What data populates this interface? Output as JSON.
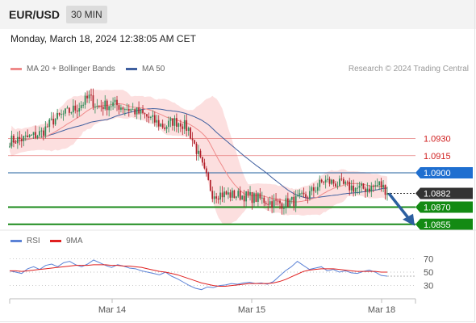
{
  "header": {
    "symbol": "EUR/USD",
    "timeframe": "30 MIN",
    "timestamp": "Monday, March 18, 2024 12:38:05 AM CET"
  },
  "legend": {
    "ma20": "MA 20 + Bollinger Bands",
    "ma50": "MA 50",
    "credit": "Research © 2024 Trading Central",
    "rsi": "RSI",
    "ma9": "9MA"
  },
  "colors": {
    "ma20": "#ef8a8a",
    "ma50": "#3f5f9f",
    "band": "#fbd9d9",
    "resistance": "#e57c7c",
    "pivot": "#1f5f9e",
    "support": "#1a8a1a",
    "last": "#333333",
    "arrow": "#2c5fa0",
    "rsi": "#5b82d6",
    "rsi_ma": "#e02020",
    "candle_up": "#2e8b57",
    "candle_down": "#b0202a"
  },
  "chart_data": [
    {
      "type": "candlestick",
      "xlabels": [
        "Mar 14",
        "Mar 15",
        "Mar 18"
      ],
      "ylim": [
        1.0852,
        1.0984
      ],
      "levels": [
        {
          "label": "1.0930",
          "value": 1.093,
          "kind": "resistance"
        },
        {
          "label": "1.0915",
          "value": 1.0915,
          "kind": "resistance"
        },
        {
          "label": "1.0900",
          "value": 1.09,
          "kind": "pivot"
        },
        {
          "label": "1.0882",
          "value": 1.0882,
          "kind": "last"
        },
        {
          "label": "1.0870",
          "value": 1.087,
          "kind": "support"
        },
        {
          "label": "1.0855",
          "value": 1.0855,
          "kind": "support"
        }
      ],
      "price_path": [
        [
          0,
          1.0928
        ],
        [
          8,
          1.093
        ],
        [
          16,
          1.0935
        ],
        [
          22,
          1.0946
        ],
        [
          28,
          1.0952
        ],
        [
          34,
          1.0957
        ],
        [
          40,
          1.0966
        ],
        [
          44,
          1.0958
        ],
        [
          52,
          1.096
        ],
        [
          60,
          1.0956
        ],
        [
          68,
          1.095
        ],
        [
          74,
          1.0944
        ],
        [
          78,
          1.094
        ],
        [
          82,
          1.0945
        ],
        [
          86,
          1.0944
        ],
        [
          90,
          1.0938
        ],
        [
          94,
          1.092
        ],
        [
          98,
          1.09
        ],
        [
          102,
          1.0882
        ],
        [
          110,
          1.0881
        ],
        [
          118,
          1.088
        ],
        [
          126,
          1.0877
        ],
        [
          132,
          1.0874
        ],
        [
          138,
          1.0873
        ],
        [
          144,
          1.0876
        ],
        [
          150,
          1.088
        ],
        [
          154,
          1.0887
        ],
        [
          158,
          1.0893
        ],
        [
          164,
          1.0891
        ],
        [
          170,
          1.0888
        ],
        [
          176,
          1.0886
        ],
        [
          182,
          1.0887
        ],
        [
          186,
          1.089
        ],
        [
          190,
          1.0884
        ]
      ],
      "projection": {
        "from": 1.0882,
        "to": 1.0855
      }
    },
    {
      "type": "line",
      "name": "RSI",
      "ylim": [
        20,
        80
      ],
      "yticks": [
        70,
        50,
        30
      ],
      "rsi": [
        52,
        50,
        48,
        55,
        58,
        54,
        60,
        62,
        58,
        64,
        66,
        61,
        58,
        62,
        68,
        64,
        60,
        57,
        61,
        59,
        56,
        55,
        52,
        50,
        48,
        46,
        50,
        44,
        40,
        35,
        30,
        26,
        24,
        28,
        27,
        30,
        31,
        33,
        32,
        34,
        35,
        33,
        34,
        32,
        36,
        44,
        52,
        58,
        66,
        60,
        54,
        56,
        58,
        52,
        54,
        50,
        52,
        49,
        48,
        51,
        53,
        50,
        45,
        44
      ],
      "rsi_ma": [
        52,
        52,
        51,
        52,
        53,
        54,
        55,
        56,
        57,
        58,
        59,
        60,
        60,
        60,
        61,
        61,
        61,
        60,
        60,
        59,
        59,
        58,
        57,
        55,
        53,
        51,
        50,
        48,
        46,
        43,
        40,
        37,
        34,
        32,
        30,
        29,
        29,
        30,
        31,
        32,
        33,
        33,
        33,
        33,
        34,
        36,
        39,
        43,
        47,
        51,
        53,
        54,
        55,
        55,
        55,
        54,
        53,
        52,
        51,
        51,
        51,
        51,
        50,
        50
      ]
    }
  ]
}
